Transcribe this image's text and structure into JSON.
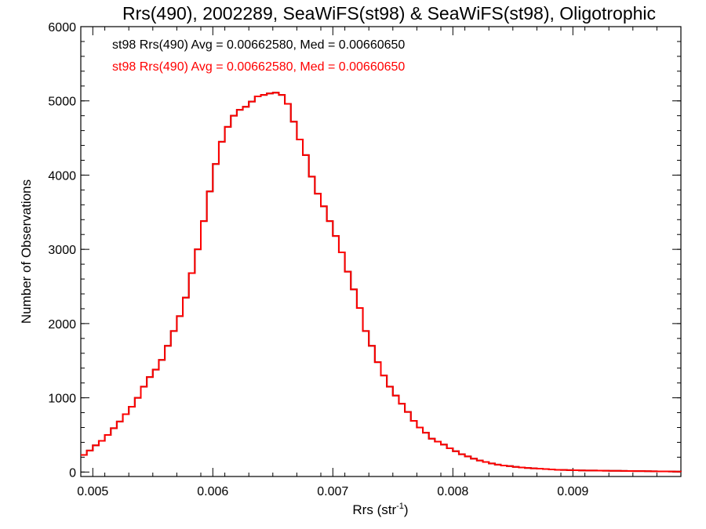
{
  "chart_data": {
    "type": "line",
    "title": "Rrs(490), 2002289, SeaWiFS(st98) & SeaWiFS(st98), Oligotrophic",
    "xlabel_main": "Rrs (str",
    "xlabel_sup": "-1",
    "xlabel_close": ")",
    "ylabel": "Number of Observations",
    "xlim": [
      0.0049,
      0.0099
    ],
    "ylim": [
      -60,
      6000
    ],
    "xticks": [
      0.005,
      0.006,
      0.007,
      0.008,
      0.009
    ],
    "xtick_labels": [
      "0.005",
      "0.006",
      "0.007",
      "0.008",
      "0.009"
    ],
    "yticks": [
      0,
      1000,
      2000,
      3000,
      4000,
      5000,
      6000
    ],
    "ytick_labels": [
      "0",
      "1000",
      "2000",
      "3000",
      "4000",
      "5000",
      "6000"
    ],
    "grid": false,
    "legend_position": "top-left",
    "annotations": [
      {
        "text": "st98 Rrs(490) Avg = 0.00662580, Med = 0.00660650",
        "color": "#000000"
      },
      {
        "text": "st98 Rrs(490) Avg = 0.00662580, Med = 0.00660650",
        "color": "#ff0000"
      }
    ],
    "series": [
      {
        "color": "#000000",
        "x": [
          0.0049,
          0.00495,
          0.005,
          0.00505,
          0.0051,
          0.00515,
          0.0052,
          0.00525,
          0.0053,
          0.00535,
          0.0054,
          0.00545,
          0.0055,
          0.00555,
          0.0056,
          0.00565,
          0.0057,
          0.00575,
          0.0058,
          0.00585,
          0.0059,
          0.00595,
          0.006,
          0.00605,
          0.0061,
          0.00615,
          0.0062,
          0.00625,
          0.0063,
          0.00635,
          0.0064,
          0.00645,
          0.0065,
          0.00655,
          0.0066,
          0.00665,
          0.0067,
          0.00675,
          0.0068,
          0.00685,
          0.0069,
          0.00695,
          0.007,
          0.00705,
          0.0071,
          0.00715,
          0.0072,
          0.00725,
          0.0073,
          0.00735,
          0.0074,
          0.00745,
          0.0075,
          0.00755,
          0.0076,
          0.00765,
          0.0077,
          0.00775,
          0.0078,
          0.00785,
          0.0079,
          0.00795,
          0.008,
          0.00805,
          0.0081,
          0.00815,
          0.0082,
          0.00825,
          0.0083,
          0.00835,
          0.0084,
          0.00845,
          0.0085,
          0.00855,
          0.0086,
          0.00865,
          0.0087,
          0.00875,
          0.0088,
          0.00885,
          0.0089,
          0.00895,
          0.009,
          0.00905,
          0.0091,
          0.00915,
          0.0092,
          0.00925,
          0.0093,
          0.00935,
          0.0094,
          0.00945,
          0.0095,
          0.00955,
          0.0096,
          0.00965,
          0.0097,
          0.00975,
          0.0098,
          0.00985,
          0.0099
        ],
        "y": [
          230,
          290,
          360,
          420,
          500,
          590,
          680,
          780,
          880,
          1000,
          1150,
          1280,
          1380,
          1510,
          1700,
          1900,
          2100,
          2350,
          2680,
          3000,
          3380,
          3780,
          4150,
          4450,
          4650,
          4800,
          4880,
          4920,
          4990,
          5060,
          5080,
          5100,
          5110,
          5080,
          4960,
          4720,
          4480,
          4270,
          3980,
          3750,
          3580,
          3380,
          3180,
          2960,
          2700,
          2460,
          2210,
          1900,
          1700,
          1480,
          1300,
          1150,
          1030,
          920,
          810,
          690,
          600,
          530,
          450,
          410,
          370,
          320,
          280,
          240,
          210,
          180,
          155,
          135,
          115,
          100,
          88,
          80,
          70,
          62,
          55,
          50,
          45,
          40,
          35,
          30,
          28,
          26,
          24,
          22,
          21,
          20,
          19,
          18,
          17,
          16,
          15,
          14,
          13,
          12,
          11,
          10,
          9,
          8,
          7,
          6,
          5
        ]
      },
      {
        "color": "#ff0000",
        "x": [
          0.0049,
          0.00495,
          0.005,
          0.00505,
          0.0051,
          0.00515,
          0.0052,
          0.00525,
          0.0053,
          0.00535,
          0.0054,
          0.00545,
          0.0055,
          0.00555,
          0.0056,
          0.00565,
          0.0057,
          0.00575,
          0.0058,
          0.00585,
          0.0059,
          0.00595,
          0.006,
          0.00605,
          0.0061,
          0.00615,
          0.0062,
          0.00625,
          0.0063,
          0.00635,
          0.0064,
          0.00645,
          0.0065,
          0.00655,
          0.0066,
          0.00665,
          0.0067,
          0.00675,
          0.0068,
          0.00685,
          0.0069,
          0.00695,
          0.007,
          0.00705,
          0.0071,
          0.00715,
          0.0072,
          0.00725,
          0.0073,
          0.00735,
          0.0074,
          0.00745,
          0.0075,
          0.00755,
          0.0076,
          0.00765,
          0.0077,
          0.00775,
          0.0078,
          0.00785,
          0.0079,
          0.00795,
          0.008,
          0.00805,
          0.0081,
          0.00815,
          0.0082,
          0.00825,
          0.0083,
          0.00835,
          0.0084,
          0.00845,
          0.0085,
          0.00855,
          0.0086,
          0.00865,
          0.0087,
          0.00875,
          0.0088,
          0.00885,
          0.0089,
          0.00895,
          0.009,
          0.00905,
          0.0091,
          0.00915,
          0.0092,
          0.00925,
          0.0093,
          0.00935,
          0.0094,
          0.00945,
          0.0095,
          0.00955,
          0.0096,
          0.00965,
          0.0097,
          0.00975,
          0.0098,
          0.00985,
          0.0099
        ],
        "y": [
          230,
          290,
          360,
          420,
          500,
          590,
          680,
          780,
          880,
          1000,
          1150,
          1280,
          1380,
          1510,
          1700,
          1900,
          2100,
          2350,
          2680,
          3000,
          3380,
          3780,
          4150,
          4450,
          4650,
          4800,
          4880,
          4920,
          4990,
          5060,
          5080,
          5100,
          5110,
          5080,
          4960,
          4720,
          4480,
          4270,
          3980,
          3750,
          3580,
          3380,
          3180,
          2960,
          2700,
          2460,
          2210,
          1900,
          1700,
          1480,
          1300,
          1150,
          1030,
          920,
          810,
          690,
          600,
          530,
          450,
          410,
          370,
          320,
          280,
          240,
          210,
          180,
          155,
          135,
          115,
          100,
          88,
          80,
          70,
          62,
          55,
          50,
          45,
          40,
          35,
          30,
          28,
          26,
          24,
          22,
          21,
          20,
          19,
          18,
          17,
          16,
          15,
          14,
          13,
          12,
          11,
          10,
          9,
          8,
          7,
          6,
          5
        ]
      }
    ]
  }
}
